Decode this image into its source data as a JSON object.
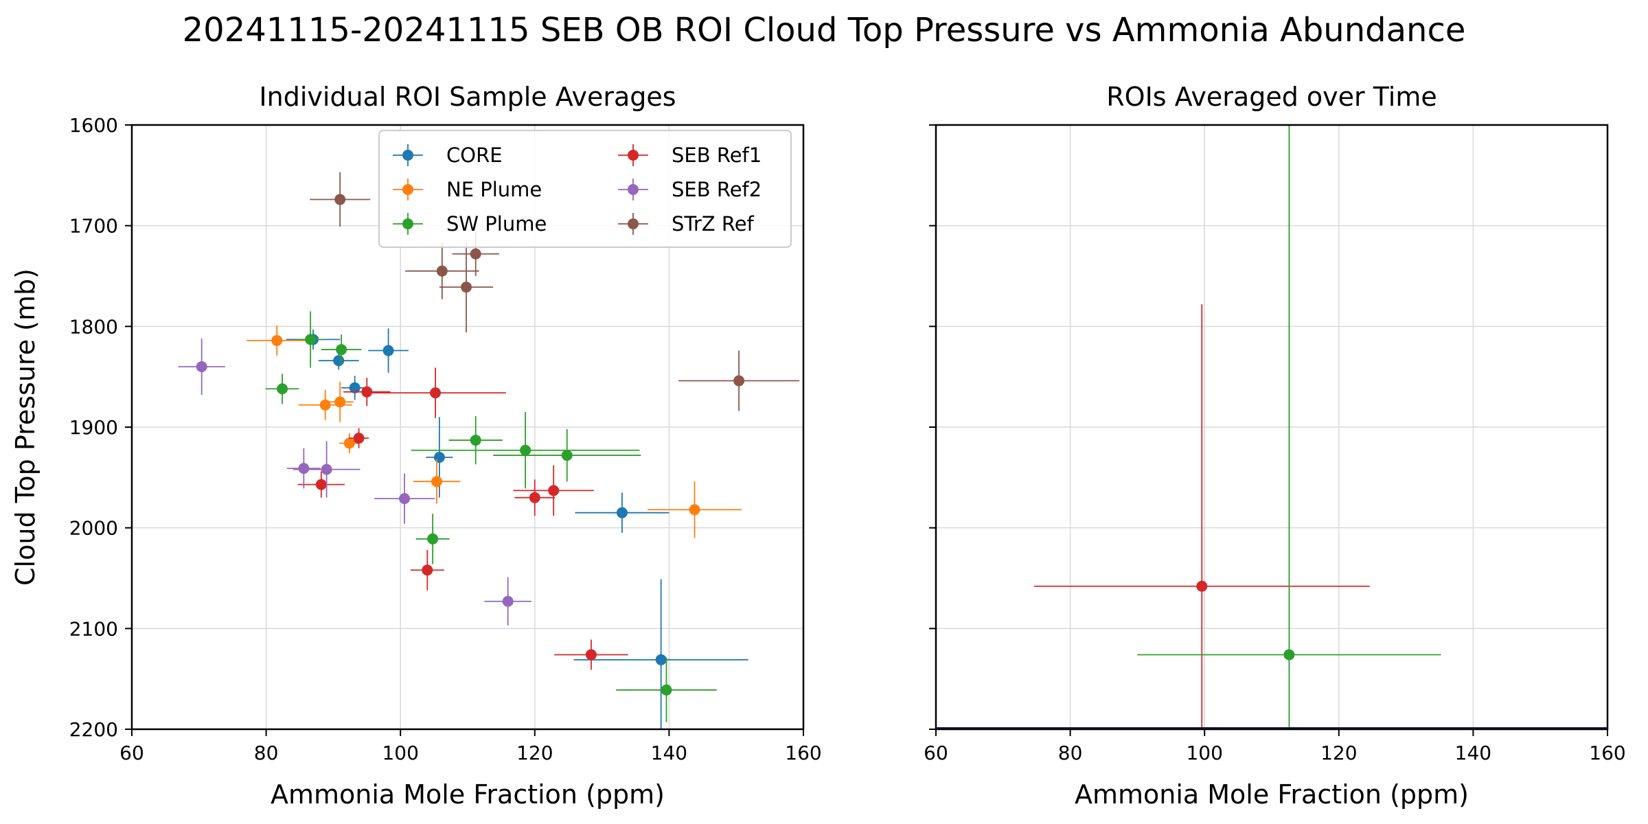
{
  "figure_title": "20241115-20241115 SEB OB ROI Cloud Top Pressure vs Ammonia Abundance",
  "chart_data": [
    {
      "type": "scatter",
      "title": "Individual ROI Sample Averages",
      "xlabel": "Ammonia Mole Fraction (ppm)",
      "ylabel": "Cloud Top Pressure (mb)",
      "xlim": [
        60,
        160
      ],
      "ylim": [
        2200,
        1600
      ],
      "y_inverted": true,
      "grid": true,
      "xticks": [
        "60",
        "80",
        "100",
        "120",
        "140",
        "160"
      ],
      "yticks": [
        "1600",
        "1700",
        "1800",
        "1900",
        "2000",
        "2100",
        "2200"
      ],
      "legend": {
        "placement": "upper-center",
        "columns": 2
      },
      "error_bars": true,
      "series": [
        {
          "name": "CORE",
          "color": "#1f77b4",
          "points": [
            {
              "x": 87,
              "y": 1813,
              "xerr": 4,
              "yerr": 10
            },
            {
              "x": 90.8,
              "y": 1834,
              "xerr": 3,
              "yerr": 9
            },
            {
              "x": 93.2,
              "y": 1861,
              "xerr": 2,
              "yerr": 12
            },
            {
              "x": 98.2,
              "y": 1824,
              "xerr": 3,
              "yerr": 22
            },
            {
              "x": 105.8,
              "y": 1930,
              "xerr": 2,
              "yerr": 40
            },
            {
              "x": 133,
              "y": 1985,
              "xerr": 7,
              "yerr": 20
            },
            {
              "x": 138.8,
              "y": 2131,
              "xerr": 13,
              "yerr": 80
            }
          ]
        },
        {
          "name": "NE Plume",
          "color": "#ff7f0e",
          "points": [
            {
              "x": 81.6,
              "y": 1814,
              "xerr": 4.5,
              "yerr": 15
            },
            {
              "x": 88.8,
              "y": 1878,
              "xerr": 4,
              "yerr": 15
            },
            {
              "x": 91,
              "y": 1875,
              "xerr": 2,
              "yerr": 20
            },
            {
              "x": 92.4,
              "y": 1916,
              "xerr": 1.5,
              "yerr": 10
            },
            {
              "x": 105.4,
              "y": 1954,
              "xerr": 3.5,
              "yerr": 22
            },
            {
              "x": 143.8,
              "y": 1982,
              "xerr": 7,
              "yerr": 28
            }
          ]
        },
        {
          "name": "SW Plume",
          "color": "#2ca02c",
          "points": [
            {
              "x": 82.4,
              "y": 1862,
              "xerr": 2.5,
              "yerr": 15
            },
            {
              "x": 86.6,
              "y": 1813,
              "xerr": 2,
              "yerr": 28
            },
            {
              "x": 91.2,
              "y": 1823,
              "xerr": 3,
              "yerr": 15
            },
            {
              "x": 104.8,
              "y": 2011,
              "xerr": 2.5,
              "yerr": 25
            },
            {
              "x": 111.2,
              "y": 1913,
              "xerr": 4,
              "yerr": 24
            },
            {
              "x": 118.6,
              "y": 1923,
              "xerr": 17,
              "yerr": 38
            },
            {
              "x": 124.8,
              "y": 1928,
              "xerr": 11,
              "yerr": 26
            },
            {
              "x": 139.6,
              "y": 2161,
              "xerr": 7.5,
              "yerr": 32
            }
          ]
        },
        {
          "name": "SEB Ref1",
          "color": "#d62728",
          "points": [
            {
              "x": 88.2,
              "y": 1957,
              "xerr": 3.5,
              "yerr": 13
            },
            {
              "x": 93.8,
              "y": 1911,
              "xerr": 1.5,
              "yerr": 10
            },
            {
              "x": 95,
              "y": 1865,
              "xerr": 3.5,
              "yerr": 14
            },
            {
              "x": 104,
              "y": 2042,
              "xerr": 2.5,
              "yerr": 20
            },
            {
              "x": 105.2,
              "y": 1866,
              "xerr": 10.5,
              "yerr": 25
            },
            {
              "x": 120,
              "y": 1970,
              "xerr": 3,
              "yerr": 18
            },
            {
              "x": 122.8,
              "y": 1963,
              "xerr": 6,
              "yerr": 25
            },
            {
              "x": 128.4,
              "y": 2126,
              "xerr": 5.5,
              "yerr": 15
            }
          ]
        },
        {
          "name": "SEB Ref2",
          "color": "#9467bd",
          "points": [
            {
              "x": 70.4,
              "y": 1840,
              "xerr": 3.5,
              "yerr": 28
            },
            {
              "x": 85.6,
              "y": 1941,
              "xerr": 2.5,
              "yerr": 20
            },
            {
              "x": 89,
              "y": 1942,
              "xerr": 5,
              "yerr": 28
            },
            {
              "x": 100.6,
              "y": 1971,
              "xerr": 4.5,
              "yerr": 25
            },
            {
              "x": 116,
              "y": 2073,
              "xerr": 3.5,
              "yerr": 24
            }
          ]
        },
        {
          "name": "STrZ Ref",
          "color": "#8c564b",
          "points": [
            {
              "x": 91,
              "y": 1674,
              "xerr": 4.5,
              "yerr": 27
            },
            {
              "x": 106.2,
              "y": 1745,
              "xerr": 5.5,
              "yerr": 28
            },
            {
              "x": 109.8,
              "y": 1761,
              "xerr": 4,
              "yerr": 45
            },
            {
              "x": 111.2,
              "y": 1728,
              "xerr": 3.5,
              "yerr": 22
            },
            {
              "x": 150.4,
              "y": 1854,
              "xerr": 9,
              "yerr": 30
            }
          ]
        }
      ]
    },
    {
      "type": "scatter",
      "title": "ROIs Averaged over Time",
      "xlabel": "Ammonia Mole Fraction (ppm)",
      "ylabel": "",
      "xlim": [
        60,
        160
      ],
      "ylim": [
        2200,
        1600
      ],
      "y_inverted": true,
      "grid": true,
      "xticks": [
        "60",
        "80",
        "100",
        "120",
        "140",
        "160"
      ],
      "error_bars": true,
      "series": [
        {
          "name": "",
          "color": "#d62728",
          "points": [
            {
              "x": 99.6,
              "y": 2058,
              "xerr": 25,
              "yerr": 280
            }
          ]
        },
        {
          "name": "",
          "color": "#2ca02c",
          "points": [
            {
              "x": 112.6,
              "y": 2126,
              "xerr": 22.6,
              "yerr": 530
            }
          ]
        }
      ]
    }
  ]
}
